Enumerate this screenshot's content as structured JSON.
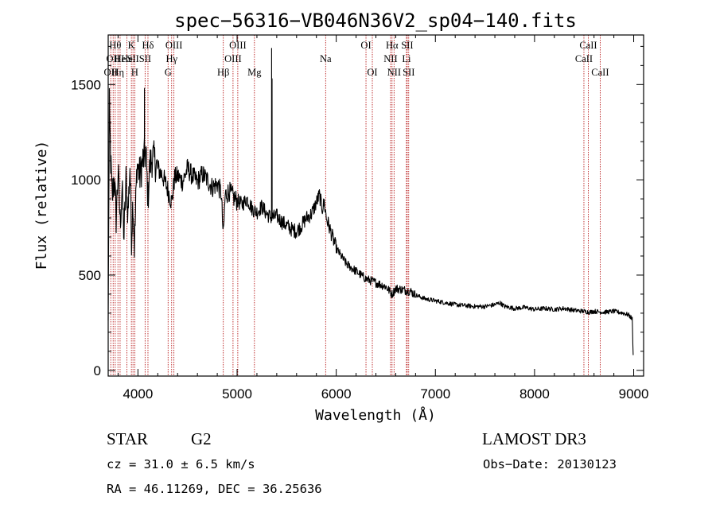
{
  "chart_data": {
    "type": "line",
    "title": "spec−56316−VB046N36V2_sp04−140.fits",
    "xlabel": "Wavelength (Å)",
    "ylabel": "Flux (relative)",
    "xlim": [
      3700,
      9100
    ],
    "ylim": [
      -30,
      1760
    ],
    "xticks": [
      4000,
      5000,
      6000,
      7000,
      8000,
      9000
    ],
    "yticks": [
      0,
      500,
      1000,
      1500
    ],
    "anchors": [
      [
        3700,
        230
      ],
      [
        3705,
        760
      ],
      [
        3712,
        1380
      ],
      [
        3725,
        1100
      ],
      [
        3740,
        900
      ],
      [
        3760,
        1020
      ],
      [
        3780,
        800
      ],
      [
        3800,
        1050
      ],
      [
        3820,
        780
      ],
      [
        3840,
        950
      ],
      [
        3860,
        700
      ],
      [
        3880,
        1000
      ],
      [
        3900,
        820
      ],
      [
        3920,
        1080
      ],
      [
        3935,
        700
      ],
      [
        3950,
        900
      ],
      [
        3965,
        650
      ],
      [
        3975,
        820
      ],
      [
        3990,
        1080
      ],
      [
        4020,
        1020
      ],
      [
        4050,
        1100
      ],
      [
        4080,
        1140
      ],
      [
        4101,
        900
      ],
      [
        4120,
        1080
      ],
      [
        4150,
        1120
      ],
      [
        4200,
        1060
      ],
      [
        4250,
        1020
      ],
      [
        4300,
        950
      ],
      [
        4340,
        880
      ],
      [
        4370,
        1010
      ],
      [
        4400,
        1020
      ],
      [
        4450,
        990
      ],
      [
        4500,
        1060
      ],
      [
        4550,
        1020
      ],
      [
        4600,
        990
      ],
      [
        4650,
        1030
      ],
      [
        4700,
        1000
      ],
      [
        4750,
        960
      ],
      [
        4800,
        980
      ],
      [
        4840,
        930
      ],
      [
        4861,
        700
      ],
      [
        4880,
        920
      ],
      [
        4920,
        940
      ],
      [
        4960,
        910
      ],
      [
        5000,
        890
      ],
      [
        5050,
        870
      ],
      [
        5100,
        900
      ],
      [
        5150,
        850
      ],
      [
        5200,
        830
      ],
      [
        5250,
        860
      ],
      [
        5300,
        820
      ],
      [
        5350,
        800
      ],
      [
        5400,
        810
      ],
      [
        5450,
        780
      ],
      [
        5500,
        760
      ],
      [
        5550,
        740
      ],
      [
        5600,
        730
      ],
      [
        5650,
        760
      ],
      [
        5700,
        800
      ],
      [
        5750,
        820
      ],
      [
        5800,
        880
      ],
      [
        5830,
        920
      ],
      [
        5860,
        850
      ],
      [
        5880,
        880
      ],
      [
        5900,
        800
      ],
      [
        5950,
        720
      ],
      [
        6000,
        640
      ],
      [
        6050,
        600
      ],
      [
        6100,
        560
      ],
      [
        6150,
        540
      ],
      [
        6200,
        520
      ],
      [
        6250,
        500
      ],
      [
        6300,
        480
      ],
      [
        6350,
        470
      ],
      [
        6400,
        460
      ],
      [
        6450,
        450
      ],
      [
        6500,
        440
      ],
      [
        6563,
        400
      ],
      [
        6600,
        430
      ],
      [
        6650,
        425
      ],
      [
        6700,
        420
      ],
      [
        6750,
        415
      ],
      [
        6800,
        395
      ],
      [
        6900,
        375
      ],
      [
        7000,
        365
      ],
      [
        7100,
        355
      ],
      [
        7200,
        345
      ],
      [
        7300,
        340
      ],
      [
        7400,
        335
      ],
      [
        7500,
        335
      ],
      [
        7600,
        345
      ],
      [
        7650,
        355
      ],
      [
        7700,
        335
      ],
      [
        7800,
        325
      ],
      [
        7900,
        330
      ],
      [
        8000,
        320
      ],
      [
        8100,
        325
      ],
      [
        8200,
        320
      ],
      [
        8300,
        325
      ],
      [
        8400,
        315
      ],
      [
        8500,
        310
      ],
      [
        8550,
        305
      ],
      [
        8600,
        310
      ],
      [
        8700,
        305
      ],
      [
        8800,
        310
      ],
      [
        8900,
        300
      ],
      [
        8950,
        290
      ],
      [
        8985,
        270
      ],
      [
        8995,
        80
      ]
    ],
    "spikes": [
      [
        5348,
        1690
      ],
      [
        5353,
        1530
      ],
      [
        4066,
        1480
      ]
    ],
    "annotation_lines": [
      {
        "wavelength": 3726,
        "label": "OII",
        "row": 3
      },
      {
        "wavelength": 3750,
        "label": "OII",
        "row": 2
      },
      {
        "wavelength": 3771,
        "label": "Hθ",
        "row": 1
      },
      {
        "wavelength": 3798,
        "label": "Hη",
        "row": 3
      },
      {
        "wavelength": 3820,
        "label": "He",
        "row": 2
      },
      {
        "wavelength": 3889,
        "label": "He",
        "row": 2
      },
      {
        "wavelength": 3934,
        "label": "K",
        "row": 1
      },
      {
        "wavelength": 3950,
        "label": "SII",
        "row": 2
      },
      {
        "wavelength": 3968,
        "label": "H",
        "row": 3
      },
      {
        "wavelength": 4072,
        "label": "SII",
        "row": 2
      },
      {
        "wavelength": 4101,
        "label": "Hδ",
        "row": 1
      },
      {
        "wavelength": 4304,
        "label": "G",
        "row": 3
      },
      {
        "wavelength": 4340,
        "label": "Hγ",
        "row": 2
      },
      {
        "wavelength": 4363,
        "label": "OIII",
        "row": 1
      },
      {
        "wavelength": 4861,
        "label": "Hβ",
        "row": 3
      },
      {
        "wavelength": 4959,
        "label": "OIII",
        "row": 2
      },
      {
        "wavelength": 5007,
        "label": "OIII",
        "row": 1
      },
      {
        "wavelength": 5175,
        "label": "Mg",
        "row": 3
      },
      {
        "wavelength": 5893,
        "label": "Na",
        "row": 2
      },
      {
        "wavelength": 6300,
        "label": "OI",
        "row": 1
      },
      {
        "wavelength": 6364,
        "label": "OI",
        "row": 3
      },
      {
        "wavelength": 6548,
        "label": "NII",
        "row": 2
      },
      {
        "wavelength": 6563,
        "label": "Hα",
        "row": 1
      },
      {
        "wavelength": 6583,
        "label": "NII",
        "row": 3
      },
      {
        "wavelength": 6708,
        "label": "Li",
        "row": 2
      },
      {
        "wavelength": 6716,
        "label": "SII",
        "row": 1
      },
      {
        "wavelength": 6731,
        "label": "SII",
        "row": 3
      },
      {
        "wavelength": 8498,
        "label": "CaII",
        "row": 2
      },
      {
        "wavelength": 8542,
        "label": "CaII",
        "row": 1
      },
      {
        "wavelength": 8662,
        "label": "CaII",
        "row": 3
      }
    ]
  },
  "info": {
    "object_class": "STAR",
    "subclass": "G2",
    "survey": "LAMOST DR3",
    "cz": "cz = 31.0 ± 6.5 km/s",
    "obs_date": "Obs−Date: 20130123",
    "coords": "RA =  46.11269, DEC =  36.25636"
  },
  "colors": {
    "spectrum": "#000000",
    "annotation_line": "#b00000",
    "axis": "#000000"
  }
}
